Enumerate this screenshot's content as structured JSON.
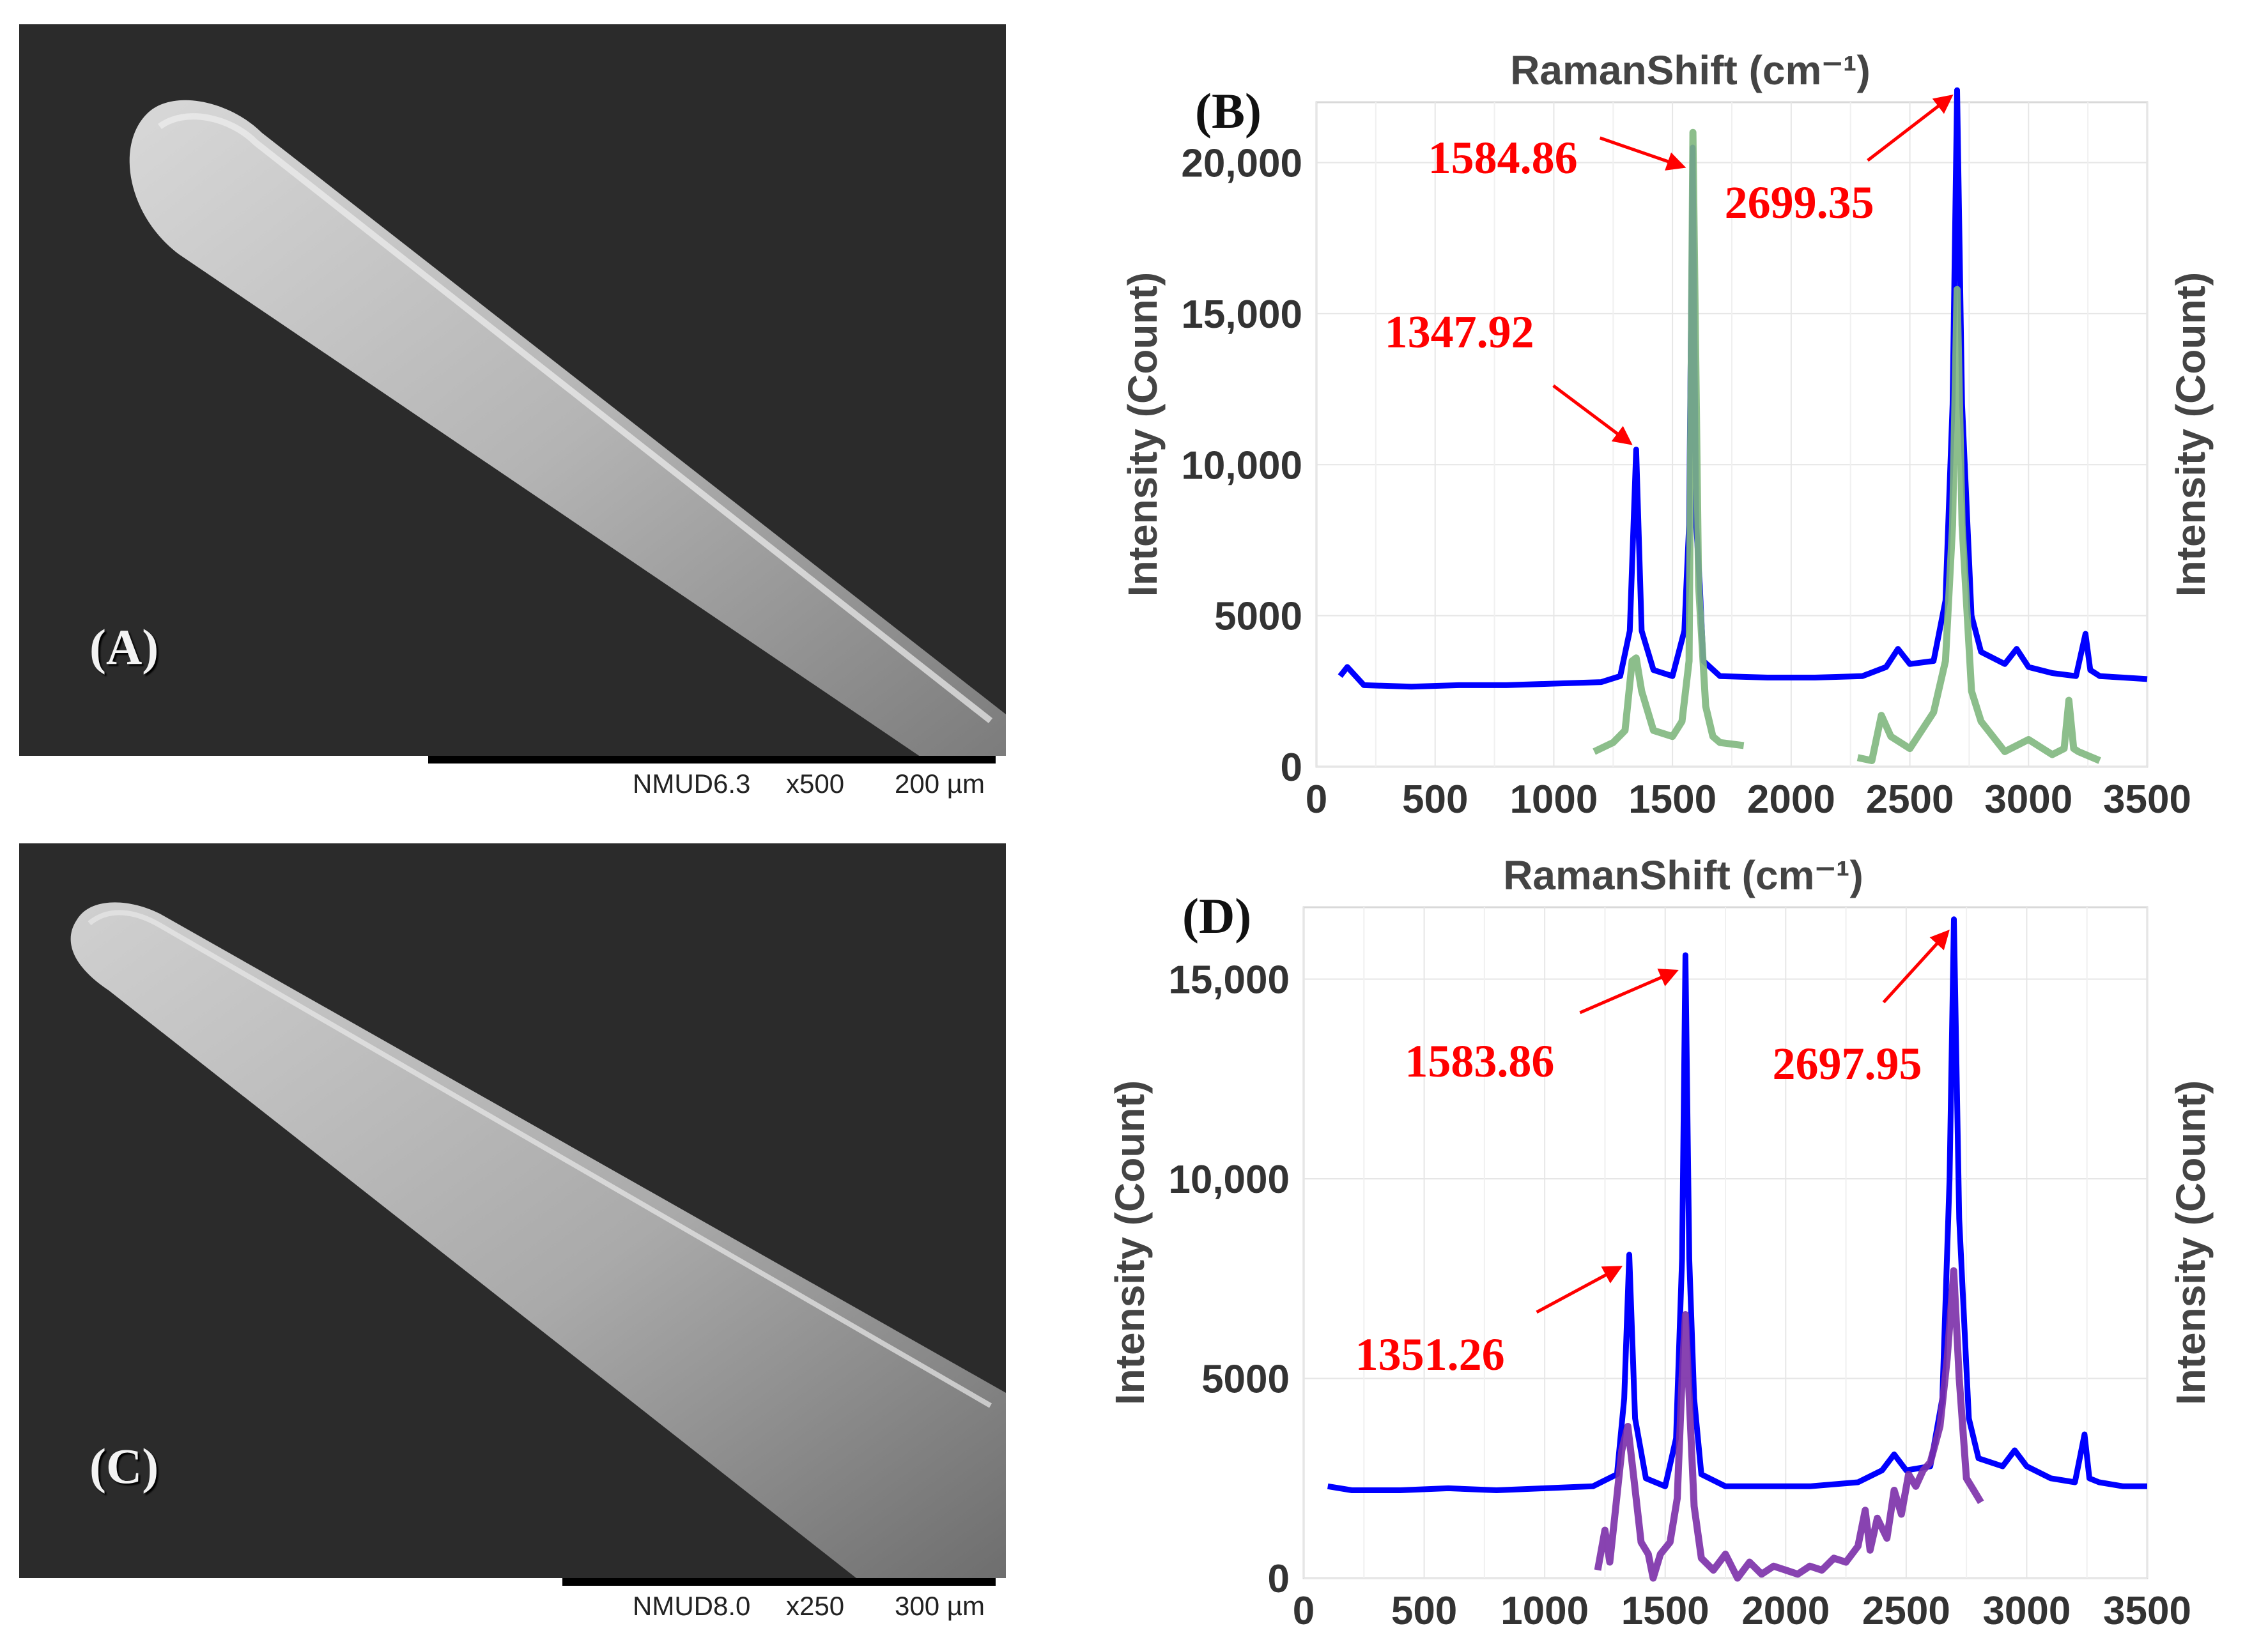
{
  "panels": {
    "A": {
      "label": "(A)",
      "scalebar": {
        "instrument": "NMUD6.3",
        "magnification": "x500",
        "scale": "200 µm"
      }
    },
    "C": {
      "label": "(C)",
      "scalebar": {
        "instrument": "NMUD8.0",
        "magnification": "x250",
        "scale": "300 µm"
      }
    }
  },
  "colors": {
    "series_blue": "#0000ff",
    "series_green": "#7fb77e",
    "series_purple": "#7b2fa8",
    "annotation_red": "#ff0000"
  },
  "chart_data": [
    {
      "type": "line",
      "panel_label": "(B)",
      "title": "RamanShift (cm⁻¹)",
      "ylabel_left": "Intensity (Count)",
      "ylabel_right": "Intensity (Count)",
      "xlim": [
        0,
        3500
      ],
      "ylim": [
        0,
        22000
      ],
      "x_ticks": [
        0,
        500,
        1000,
        1500,
        2000,
        2500,
        3000,
        3500
      ],
      "x_tick_labels": [
        "0",
        "500",
        "1000",
        "1500",
        "2000",
        "2500",
        "3000",
        "3500"
      ],
      "y_ticks": [
        0,
        5000,
        10000,
        15000,
        20000
      ],
      "y_tick_labels": [
        "0",
        "5000",
        "10,000",
        "15,000",
        "20,000"
      ],
      "grid": true,
      "annotations": [
        {
          "text": "1347.92",
          "x": 1347.92,
          "y": 10500
        },
        {
          "text": "1584.86",
          "x": 1584.86,
          "y": 20500
        },
        {
          "text": "2699.35",
          "x": 2699.35,
          "y": 22400
        }
      ],
      "series": [
        {
          "color": "#0000ff",
          "x": [
            100,
            130,
            200,
            400,
            600,
            800,
            1000,
            1200,
            1280,
            1320,
            1347,
            1370,
            1420,
            1500,
            1550,
            1570,
            1585,
            1600,
            1615,
            1630,
            1700,
            1900,
            2100,
            2300,
            2400,
            2450,
            2500,
            2600,
            2650,
            2680,
            2699,
            2720,
            2760,
            2800,
            2900,
            2950,
            3000,
            3100,
            3200,
            3240,
            3260,
            3300,
            3400,
            3500
          ],
          "y": [
            3000,
            3300,
            2700,
            2650,
            2700,
            2700,
            2750,
            2800,
            3000,
            4500,
            10500,
            4500,
            3200,
            3000,
            4500,
            8000,
            20500,
            8000,
            6000,
            3500,
            3000,
            2950,
            2950,
            3000,
            3300,
            3900,
            3400,
            3500,
            5500,
            12000,
            22400,
            12000,
            5000,
            3800,
            3400,
            3900,
            3300,
            3100,
            3000,
            4400,
            3200,
            3000,
            2950,
            2900
          ]
        },
        {
          "color": "#7fb77e",
          "x": [
            1170,
            1250,
            1300,
            1330,
            1347,
            1370,
            1420,
            1500,
            1540,
            1570,
            1586,
            1610,
            1640,
            1670,
            1700,
            1800,
            null,
            2280,
            2340,
            2380,
            2420,
            2500,
            2600,
            2650,
            2680,
            2699,
            2720,
            2760,
            2800,
            2900,
            3000,
            3100,
            3150,
            3170,
            3190,
            3210,
            3300
          ],
          "y": [
            500,
            800,
            1200,
            3500,
            3600,
            2500,
            1200,
            1000,
            1500,
            3500,
            21000,
            6000,
            2000,
            1000,
            800,
            700,
            null,
            300,
            200,
            1700,
            1000,
            600,
            1800,
            3500,
            8000,
            15800,
            8000,
            2500,
            1500,
            500,
            900,
            400,
            600,
            2200,
            600,
            500,
            200
          ]
        }
      ]
    },
    {
      "type": "line",
      "panel_label": "(D)",
      "title": "RamanShift (cm⁻¹)",
      "ylabel_left": "Intensity (Count)",
      "ylabel_right": "Intensity (Count)",
      "xlim": [
        0,
        3500
      ],
      "ylim": [
        0,
        16800
      ],
      "x_ticks": [
        0,
        500,
        1000,
        1500,
        2000,
        2500,
        3000,
        3500
      ],
      "x_tick_labels": [
        "0",
        "500",
        "1000",
        "1500",
        "2000",
        "2500",
        "3000",
        "3500"
      ],
      "y_ticks": [
        0,
        5000,
        10000,
        15000
      ],
      "y_tick_labels": [
        "0",
        "5000",
        "10,000",
        "15,000"
      ],
      "grid": true,
      "annotations": [
        {
          "text": "1351.26",
          "x": 1351.26,
          "y": 8100
        },
        {
          "text": "1583.86",
          "x": 1583.86,
          "y": 15600
        },
        {
          "text": "2697.95",
          "x": 2697.95,
          "y": 16500
        }
      ],
      "series": [
        {
          "color": "#0000ff",
          "x": [
            100,
            200,
            400,
            600,
            800,
            1000,
            1200,
            1300,
            1330,
            1351,
            1375,
            1420,
            1500,
            1545,
            1570,
            1584,
            1600,
            1620,
            1650,
            1750,
            1900,
            2100,
            2300,
            2400,
            2450,
            2500,
            2600,
            2650,
            2680,
            2698,
            2720,
            2760,
            2800,
            2900,
            2950,
            3000,
            3100,
            3200,
            3240,
            3260,
            3300,
            3400,
            3500
          ],
          "y": [
            2300,
            2200,
            2200,
            2250,
            2200,
            2250,
            2300,
            2600,
            4500,
            8100,
            4000,
            2500,
            2300,
            3500,
            8000,
            15600,
            8000,
            4500,
            2600,
            2300,
            2300,
            2300,
            2400,
            2700,
            3100,
            2700,
            2800,
            4500,
            10000,
            16500,
            9000,
            4000,
            3000,
            2800,
            3200,
            2800,
            2500,
            2400,
            3600,
            2500,
            2400,
            2300,
            2300
          ]
        },
        {
          "color": "#7b2fa8",
          "x": [
            1220,
            1250,
            1270,
            1290,
            1320,
            1345,
            1370,
            1400,
            1430,
            1450,
            1480,
            1520,
            1550,
            1570,
            1584,
            1600,
            1620,
            1650,
            1700,
            1750,
            1800,
            1850,
            1900,
            1950,
            2000,
            2050,
            2100,
            2150,
            2200,
            2250,
            2300,
            2330,
            2350,
            2380,
            2420,
            2450,
            2480,
            2510,
            2540,
            2570,
            2600,
            2640,
            2670,
            2697,
            2720,
            2750,
            2780,
            2810
          ],
          "y": [
            200,
            1200,
            400,
            1500,
            3200,
            3800,
            2500,
            900,
            600,
            0,
            600,
            900,
            2000,
            5000,
            6600,
            4500,
            1800,
            500,
            200,
            600,
            0,
            400,
            100,
            300,
            200,
            100,
            300,
            200,
            500,
            400,
            800,
            1700,
            700,
            1500,
            1000,
            2200,
            1600,
            2600,
            2300,
            2700,
            2900,
            3800,
            5500,
            7700,
            5000,
            2500,
            2200,
            1900
          ]
        }
      ]
    }
  ]
}
